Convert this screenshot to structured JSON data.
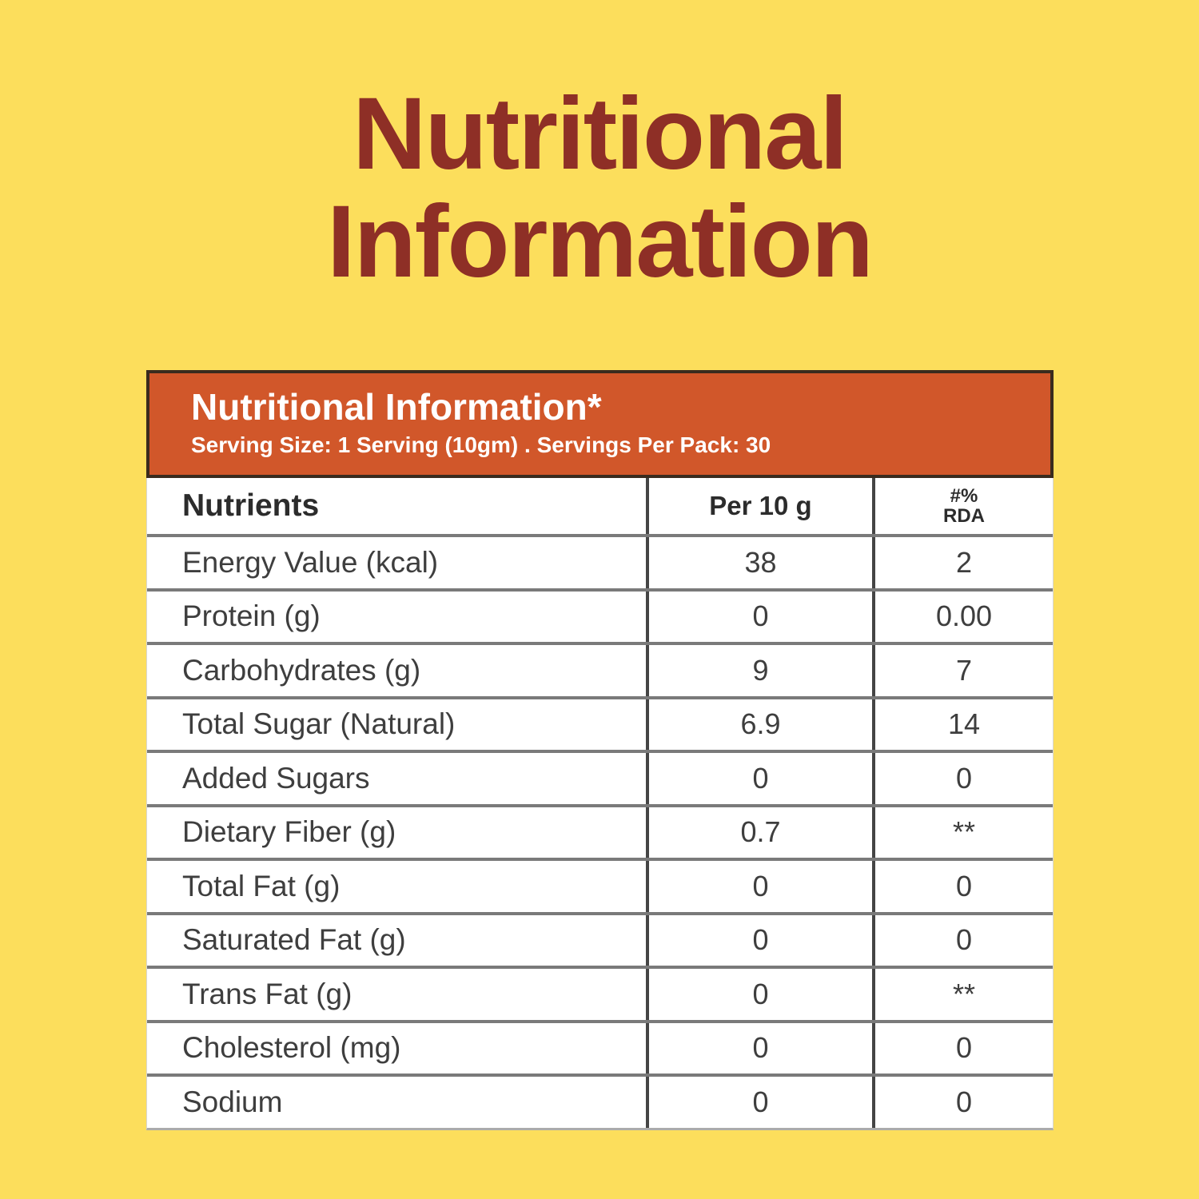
{
  "page": {
    "title_line1": "Nutritional",
    "title_line2": "Information"
  },
  "colors": {
    "background": "#FCDE5C",
    "title_text": "#8E2F26",
    "panel_header_bg": "#D1572A",
    "panel_header_border": "#3A2B1E",
    "panel_header_text": "#FFFFFF",
    "table_text": "#3E3E3E"
  },
  "panel": {
    "header": {
      "title": "Nutritional Information*",
      "subtitle": "Serving Size: 1 Serving (10gm) . Servings Per Pack: 30"
    },
    "table": {
      "col1_header": "Nutrients",
      "col2_header": "Per 10 g",
      "col3_header_line1": "#%",
      "col3_header_line2": "RDA",
      "rows": [
        {
          "nutrient": "Energy Value (kcal)",
          "per10g": "38",
          "rda": "2"
        },
        {
          "nutrient": "Protein (g)",
          "per10g": "0",
          "rda": "0.00"
        },
        {
          "nutrient": "Carbohydrates (g)",
          "per10g": "9",
          "rda": "7"
        },
        {
          "nutrient": "Total Sugar (Natural)",
          "per10g": "6.9",
          "rda": "14"
        },
        {
          "nutrient": "Added Sugars",
          "per10g": "0",
          "rda": "0"
        },
        {
          "nutrient": "Dietary Fiber (g)",
          "per10g": "0.7",
          "rda": "**"
        },
        {
          "nutrient": "Total Fat (g)",
          "per10g": "0",
          "rda": "0"
        },
        {
          "nutrient": "Saturated Fat (g)",
          "per10g": "0",
          "rda": "0"
        },
        {
          "nutrient": "Trans Fat (g)",
          "per10g": "0",
          "rda": "**"
        },
        {
          "nutrient": "Cholesterol (mg)",
          "per10g": "0",
          "rda": "0"
        },
        {
          "nutrient": "Sodium",
          "per10g": "0",
          "rda": "0"
        }
      ]
    }
  }
}
